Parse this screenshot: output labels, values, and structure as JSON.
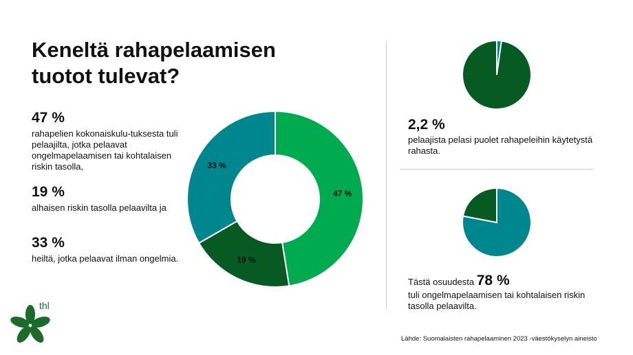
{
  "title": "Keneltä rahapelaamisen tuotot tulevat?",
  "stats": [
    {
      "value": "47 %",
      "desc": "rahapelien kokonaiskulu-tuksesta tuli pelaajilta, jotka pelaavat ongelmapelaamisen tai kohtalaisen riskin tasolla,"
    },
    {
      "value": "19 %",
      "desc": "alhaisen riskin tasolla pelaavilta ja"
    },
    {
      "value": "33 %",
      "desc": "heiltä, jotka pelaavat ilman ongelmia."
    }
  ],
  "right": {
    "stat1_value": "2,2 %",
    "stat1_desc": "pelaajista pelasi puolet rahapeleihin käytetystä rahasta.",
    "stat2_prefix": "Tästä osuudesta",
    "stat2_value": "78 %",
    "stat2_desc": "tuli ongelmapelaamisen tai kohtalaisen riskin tasolla pelaavilta."
  },
  "source": "Lähde: Suomalaisten rahapelaaminen 2023 -väestökyselyn aineisto",
  "logo_text": "thl",
  "colors": {
    "light_green": "#00aa4f",
    "dark_green": "#085a23",
    "teal": "#00868e"
  },
  "chart_data": [
    {
      "type": "pie",
      "variant": "donut",
      "slices": [
        {
          "label": "47 %",
          "value": 47,
          "color": "#00aa4f"
        },
        {
          "label": "19 %",
          "value": 19,
          "color": "#085a23"
        },
        {
          "label": "33 %",
          "value": 33,
          "color": "#00868e"
        }
      ]
    },
    {
      "type": "pie",
      "slices": [
        {
          "label": "",
          "value": 2.2,
          "color": "#00868e"
        },
        {
          "label": "",
          "value": 97.8,
          "color": "#085a23"
        }
      ]
    },
    {
      "type": "pie",
      "slices": [
        {
          "label": "",
          "value": 78,
          "color": "#00868e"
        },
        {
          "label": "",
          "value": 22,
          "color": "#085a23"
        }
      ]
    }
  ]
}
